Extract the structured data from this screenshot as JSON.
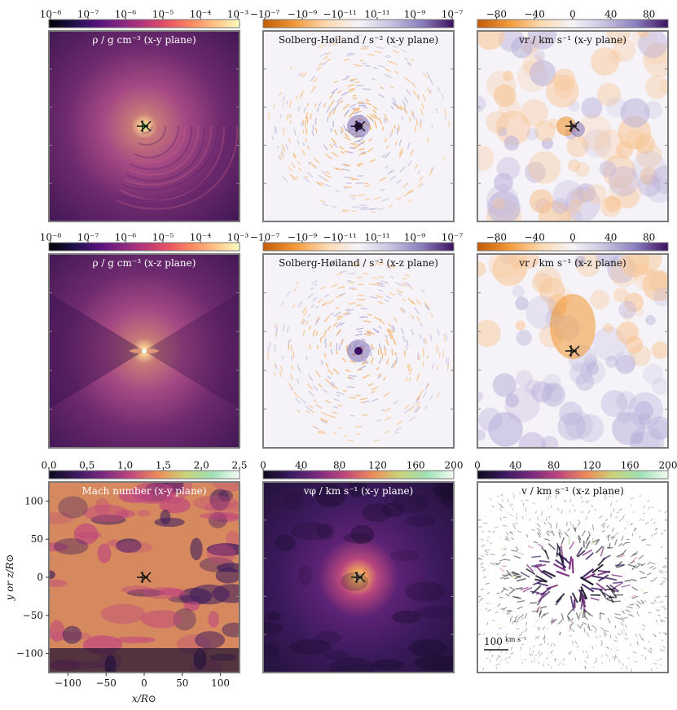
{
  "colors": {
    "magma": [
      "#000004",
      "#1d1147",
      "#51127c",
      "#832681",
      "#b73779",
      "#e75263",
      "#fc8961",
      "#fec488",
      "#fcfdbf"
    ],
    "sequential": [
      "#0d0a1c",
      "#3a1a5e",
      "#7a2a7e",
      "#c0477e",
      "#ee8a5a",
      "#c9d27a",
      "#9fe0b6",
      "#f4fbf2"
    ],
    "diverging": [
      "#c25a06",
      "#f39a3a",
      "#fcd9b0",
      "#f6f3f8",
      "#c9c3e0",
      "#8a7dbd",
      "#3c0f5e"
    ],
    "frame": "#7a7a7a",
    "marker": "#111111"
  },
  "chart_data": [
    {
      "id": "density-xy",
      "type": "heatmap",
      "colormap": "magma",
      "scale": "log",
      "title": "ρ / g cm⁻³ (x-y plane)",
      "colorbar_ticks": [
        "10⁻⁸",
        "10⁻⁷",
        "10⁻⁶",
        "10⁻⁵",
        "10⁻⁴",
        "10⁻³"
      ],
      "colorbar_range": [
        1e-08,
        0.001
      ],
      "markers": [
        "+",
        "×"
      ]
    },
    {
      "id": "solberg-hoiland-xy",
      "type": "heatmap",
      "colormap": "diverging",
      "scale": "symlog",
      "title": "Solberg-Høiland / s⁻² (x-y plane)",
      "colorbar_ticks": [
        "−10⁻⁷",
        "−10⁻⁹",
        "−10⁻¹¹",
        "10⁻¹¹",
        "10⁻⁹",
        "10⁻⁷"
      ],
      "colorbar_range": [
        -1e-07,
        1e-07
      ],
      "markers": [
        "+",
        "×"
      ]
    },
    {
      "id": "radial-velocity-xy",
      "type": "heatmap",
      "colormap": "diverging",
      "scale": "linear",
      "title": "vr / km s⁻¹ (x-y plane)",
      "colorbar_ticks": [
        "−80",
        "−40",
        "0",
        "40",
        "80"
      ],
      "colorbar_range": [
        -100,
        100
      ],
      "markers": [
        "+",
        "×"
      ]
    },
    {
      "id": "density-xz",
      "type": "heatmap",
      "colormap": "magma",
      "scale": "log",
      "title": "ρ / g cm⁻³ (x-z plane)",
      "colorbar_ticks": [
        "10⁻⁸",
        "10⁻⁷",
        "10⁻⁶",
        "10⁻⁵",
        "10⁻⁴",
        "10⁻³"
      ],
      "colorbar_range": [
        1e-08,
        0.001
      ],
      "markers": []
    },
    {
      "id": "solberg-hoiland-xz",
      "type": "heatmap",
      "colormap": "diverging",
      "scale": "symlog",
      "title": "Solberg-Høiland / s⁻² (x-z plane)",
      "colorbar_ticks": [
        "−10⁻⁷",
        "−10⁻⁹",
        "−10⁻¹¹",
        "10⁻¹¹",
        "10⁻⁹",
        "10⁻⁷"
      ],
      "colorbar_range": [
        -1e-07,
        1e-07
      ],
      "markers": []
    },
    {
      "id": "radial-velocity-xz",
      "type": "heatmap",
      "colormap": "diverging",
      "scale": "linear",
      "title": "vr / km s⁻¹ (x-z plane)",
      "colorbar_ticks": [
        "−80",
        "−40",
        "0",
        "40",
        "80"
      ],
      "colorbar_range": [
        -100,
        100
      ],
      "markers": [
        "+",
        "×"
      ]
    },
    {
      "id": "mach-number-xy",
      "type": "heatmap",
      "colormap": "sequential",
      "scale": "linear",
      "title": "Mach number (x-y plane)",
      "colorbar_ticks": [
        "0.0",
        "0.5",
        "1.0",
        "1.5",
        "2.0",
        "2.5"
      ],
      "colorbar_range": [
        0,
        2.5
      ],
      "markers": [
        "+",
        "×"
      ],
      "xlabel": "x/R⊙",
      "ylabel": "y or z/R⊙",
      "xlim": [
        -125,
        125
      ],
      "ylim": [
        -125,
        125
      ],
      "xticks": [
        "−100",
        "−50",
        "0",
        "50",
        "100"
      ],
      "yticks": [
        "100",
        "50",
        "0",
        "−50",
        "−100"
      ]
    },
    {
      "id": "azimuthal-velocity-xy",
      "type": "heatmap",
      "colormap": "sequential",
      "scale": "linear",
      "title": "vφ / km s⁻¹ (x-y plane)",
      "colorbar_ticks": [
        "0",
        "40",
        "80",
        "120",
        "160",
        "200"
      ],
      "colorbar_range": [
        0,
        200
      ],
      "markers": [
        "+",
        "×"
      ]
    },
    {
      "id": "velocity-vectors-xz",
      "type": "scatter",
      "colormap": "sequential",
      "scale": "linear",
      "title": "v / km s⁻¹ (x-z plane)",
      "colorbar_ticks": [
        "0",
        "40",
        "80",
        "120",
        "160",
        "200"
      ],
      "colorbar_range": [
        0,
        200
      ],
      "markers": [],
      "scale_bar_value": "100",
      "scale_bar_unit": "km s⁻¹"
    }
  ]
}
